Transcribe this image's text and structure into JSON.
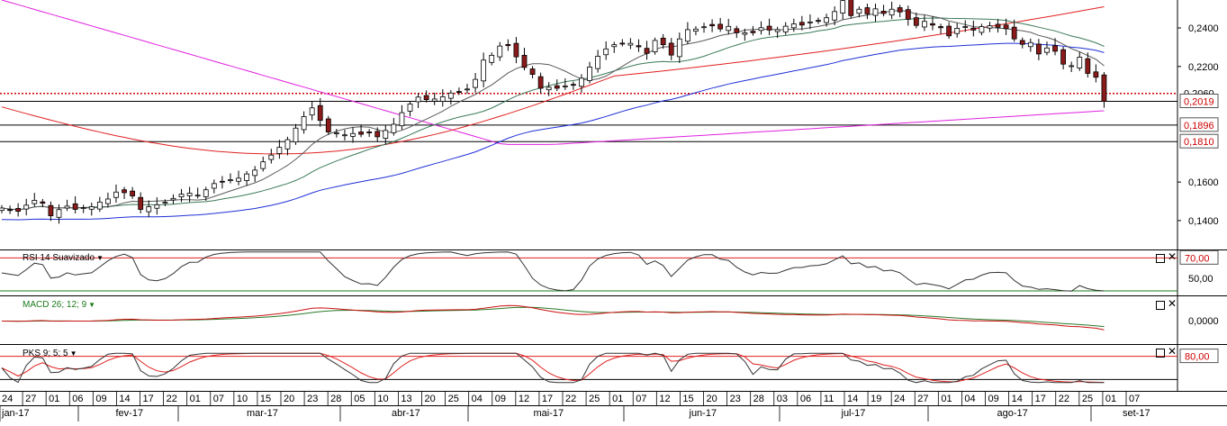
{
  "colors": {
    "up_candle": "#ffffff",
    "down_candle": "#8b1a1a",
    "mm_fast": "#5a5a5a",
    "mm_mid": "#3c7a5a",
    "mm_blue": "#1f2fd6",
    "mm_red": "#e02020",
    "mm_magenta": "#e020e0",
    "last_price_line": "#d00000",
    "rsi_line": "#333333",
    "macd_line": "#cc1111",
    "macd_signal": "#2a7a2a",
    "pks_k": "#333333",
    "pks_d": "#e02020",
    "badge_text": "#cc0000"
  },
  "panels": {
    "rsi": {
      "label": "RSI 14 Suavizado",
      "level_high": "70,00",
      "level_mid": "50,00"
    },
    "macd": {
      "label": "MACD 26; 12; 9",
      "zero": "0,0000"
    },
    "pks": {
      "label": "PKS 9; 5; 5",
      "level_high": "80,00"
    }
  },
  "controls": {
    "maximize_glyph": "□",
    "close_glyph": "✕"
  },
  "chart_data": [
    {
      "type": "candlestick",
      "title": "",
      "ylim": [
        0.125,
        0.2545
      ],
      "y_ticks": [
        "0,2400",
        "0,2200",
        "0,1600",
        "0,1400"
      ],
      "y_tick_values": [
        0.24,
        0.22,
        0.16,
        0.14
      ],
      "price_badges": [
        {
          "label": "0,2060",
          "value": 0.206,
          "boxed": false,
          "partly_hidden": true
        },
        {
          "label": "0,2019",
          "value": 0.2019,
          "boxed": true
        },
        {
          "label": "0,1896",
          "value": 0.1896,
          "boxed": true
        },
        {
          "label": "0,1810",
          "value": 0.181,
          "boxed": true
        }
      ],
      "horizontal_levels": [
        0.2019,
        0.1896,
        0.181
      ],
      "last_price_level": 0.206,
      "x_day_labels": [
        "24",
        "27",
        "01",
        "06",
        "09",
        "14",
        "17",
        "22",
        "01",
        "07",
        "10",
        "15",
        "20",
        "23",
        "28",
        "05",
        "10",
        "13",
        "20",
        "25",
        "04",
        "09",
        "12",
        "17",
        "22",
        "25",
        "01",
        "07",
        "12",
        "15",
        "20",
        "23",
        "28",
        "03",
        "06",
        "11",
        "14",
        "19",
        "24",
        "27",
        "01",
        "04",
        "09",
        "14",
        "17",
        "22",
        "25",
        "01",
        "07"
      ],
      "x_month_labels": [
        "jan-17",
        "fev-17",
        "mar-17",
        "abr-17",
        "mai-17",
        "jun-17",
        "jul-17",
        "ago-17",
        "set-17"
      ],
      "month_start_index": [
        0,
        7,
        16,
        33,
        48,
        64,
        80,
        94,
        111
      ],
      "close": [
        0.1465,
        0.1455,
        0.1448,
        0.148,
        0.1505,
        0.149,
        0.1425,
        0.1457,
        0.1475,
        0.1458,
        0.1467,
        0.1472,
        0.1496,
        0.1512,
        0.1548,
        0.1545,
        0.1528,
        0.1458,
        0.1472,
        0.1482,
        0.1495,
        0.1515,
        0.1537,
        0.1542,
        0.1532,
        0.156,
        0.1592,
        0.16,
        0.1612,
        0.162,
        0.1642,
        0.1662,
        0.1705,
        0.174,
        0.178,
        0.182,
        0.188,
        0.194,
        0.1985,
        0.192,
        0.186,
        0.1855,
        0.1845,
        0.1852,
        0.1848,
        0.1855,
        0.1835,
        0.1868,
        0.19,
        0.196,
        0.2005,
        0.2041,
        0.2028,
        0.2031,
        0.2043,
        0.2062,
        0.2067,
        0.2083,
        0.2133,
        0.2233,
        0.2258,
        0.2306,
        0.2308,
        0.225,
        0.2195,
        0.2159,
        0.2087,
        0.2092,
        0.2087,
        0.2099,
        0.2105,
        0.2139,
        0.2197,
        0.2253,
        0.2291,
        0.2313,
        0.2319,
        0.232,
        0.2302,
        0.2268,
        0.2335,
        0.2313,
        0.2259,
        0.2343,
        0.2391,
        0.2394,
        0.2406,
        0.2411,
        0.2395,
        0.2408,
        0.2375,
        0.2375,
        0.2375,
        0.2401,
        0.2389,
        0.2391,
        0.2409,
        0.2421,
        0.2415,
        0.2431,
        0.2436,
        0.2453,
        0.2485,
        0.2542,
        0.2464,
        0.2497,
        0.2473,
        0.2499,
        0.2475,
        0.2497,
        0.2483,
        0.2445,
        0.2413,
        0.2434,
        0.2415,
        0.2401,
        0.2359,
        0.2398,
        0.2407,
        0.2389,
        0.2407,
        0.2411,
        0.2403,
        0.2396,
        0.2343,
        0.2315,
        0.2324,
        0.2265,
        0.2296,
        0.2279,
        0.2212,
        0.2204,
        0.2248,
        0.2164,
        0.2144,
        0.2019
      ],
      "series": [
        {
          "name": "",
          "role": "mm_fast"
        },
        {
          "name": "",
          "role": "mm_mid"
        },
        {
          "name": "",
          "role": "mm_blue"
        },
        {
          "name": "",
          "role": "mm_red"
        },
        {
          "name": "",
          "role": "mm_magenta"
        }
      ]
    },
    {
      "type": "line",
      "title": "RSI 14 Suavizado",
      "ylim": [
        20,
        80
      ],
      "levels": [
        70,
        50
      ],
      "y_ticks": [
        "70,00",
        "50,00"
      ]
    },
    {
      "type": "line",
      "title": "MACD 26; 12; 9",
      "y_ticks": [
        "0,0000"
      ],
      "series": [
        {
          "name": "",
          "role": "macd"
        },
        {
          "name": "",
          "role": "signal"
        }
      ]
    },
    {
      "type": "line",
      "title": "PKS 9; 5; 5",
      "ylim": [
        0,
        100
      ],
      "levels": [
        80,
        20
      ],
      "y_ticks": [
        "80,00"
      ],
      "series": [
        {
          "name": "",
          "role": "k"
        },
        {
          "name": "",
          "role": "d"
        }
      ]
    }
  ]
}
